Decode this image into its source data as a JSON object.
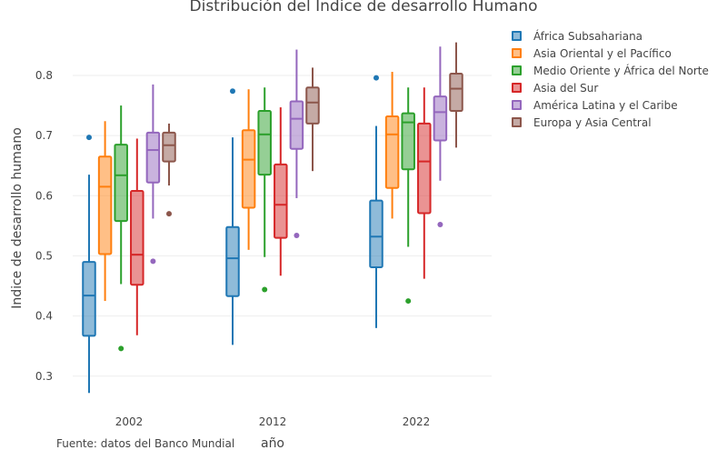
{
  "chart_data": {
    "type": "box",
    "title": "Distribución del Indice de desarrollo Humano",
    "xlabel": "año",
    "ylabel": "Indice de desarrollo humano",
    "annotation": "Fuente: datos del Banco Mundial",
    "categories": [
      "2002",
      "2012",
      "2022"
    ],
    "y_ticks": [
      "0.3",
      "0.4",
      "0.5",
      "0.6",
      "0.7",
      "0.8"
    ],
    "ylim": [
      0.26,
      0.86
    ],
    "grid": true,
    "legend_position": "top-right",
    "series": [
      {
        "name": "África Subsahariana",
        "color": "#1f77b4",
        "boxes": [
          {
            "min": 0.272,
            "q1": 0.367,
            "median": 0.434,
            "q3": 0.49,
            "max": 0.635,
            "outliers": [
              0.697
            ]
          },
          {
            "min": 0.352,
            "q1": 0.433,
            "median": 0.496,
            "q3": 0.548,
            "max": 0.697,
            "outliers": [
              0.774
            ]
          },
          {
            "min": 0.38,
            "q1": 0.481,
            "median": 0.532,
            "q3": 0.592,
            "max": 0.716,
            "outliers": [
              0.796
            ]
          }
        ]
      },
      {
        "name": "Asia Oriental y el Pacífico",
        "color": "#ff7f0e",
        "boxes": [
          {
            "min": 0.425,
            "q1": 0.503,
            "median": 0.615,
            "q3": 0.665,
            "max": 0.724,
            "outliers": []
          },
          {
            "min": 0.51,
            "q1": 0.58,
            "median": 0.66,
            "q3": 0.709,
            "max": 0.777,
            "outliers": []
          },
          {
            "min": 0.562,
            "q1": 0.613,
            "median": 0.702,
            "q3": 0.732,
            "max": 0.806,
            "outliers": []
          }
        ]
      },
      {
        "name": "Medio Oriente y África del Norte",
        "color": "#2ca02c",
        "boxes": [
          {
            "min": 0.453,
            "q1": 0.558,
            "median": 0.634,
            "q3": 0.685,
            "max": 0.75,
            "outliers": [
              0.346
            ]
          },
          {
            "min": 0.498,
            "q1": 0.635,
            "median": 0.702,
            "q3": 0.741,
            "max": 0.78,
            "outliers": [
              0.444
            ]
          },
          {
            "min": 0.515,
            "q1": 0.644,
            "median": 0.722,
            "q3": 0.737,
            "max": 0.78,
            "outliers": [
              0.425
            ]
          }
        ]
      },
      {
        "name": "Asia del Sur",
        "color": "#d62728",
        "boxes": [
          {
            "min": 0.368,
            "q1": 0.452,
            "median": 0.502,
            "q3": 0.608,
            "max": 0.695,
            "outliers": []
          },
          {
            "min": 0.467,
            "q1": 0.53,
            "median": 0.585,
            "q3": 0.652,
            "max": 0.747,
            "outliers": []
          },
          {
            "min": 0.462,
            "q1": 0.571,
            "median": 0.657,
            "q3": 0.72,
            "max": 0.78,
            "outliers": []
          }
        ]
      },
      {
        "name": "América Latina y el Caribe",
        "color": "#9467bd",
        "boxes": [
          {
            "min": 0.562,
            "q1": 0.622,
            "median": 0.676,
            "q3": 0.705,
            "max": 0.785,
            "outliers": [
              0.491
            ]
          },
          {
            "min": 0.596,
            "q1": 0.678,
            "median": 0.728,
            "q3": 0.757,
            "max": 0.843,
            "outliers": [
              0.534
            ]
          },
          {
            "min": 0.625,
            "q1": 0.692,
            "median": 0.739,
            "q3": 0.765,
            "max": 0.848,
            "outliers": [
              0.552
            ]
          }
        ]
      },
      {
        "name": "Europa y Asia Central",
        "color": "#8c564b",
        "boxes": [
          {
            "min": 0.617,
            "q1": 0.657,
            "median": 0.684,
            "q3": 0.705,
            "max": 0.72,
            "outliers": [
              0.57
            ]
          },
          {
            "min": 0.641,
            "q1": 0.72,
            "median": 0.755,
            "q3": 0.78,
            "max": 0.813,
            "outliers": []
          },
          {
            "min": 0.68,
            "q1": 0.741,
            "median": 0.778,
            "q3": 0.803,
            "max": 0.855,
            "outliers": []
          }
        ]
      }
    ]
  }
}
